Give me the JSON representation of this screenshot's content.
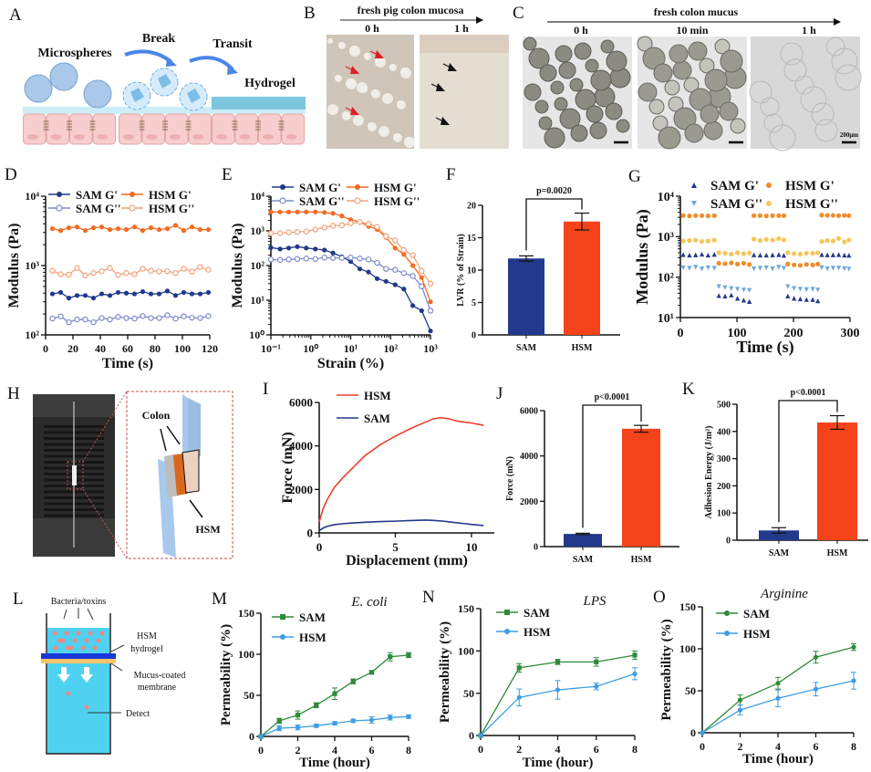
{
  "panel_letters": [
    "A",
    "B",
    "C",
    "D",
    "E",
    "F",
    "G",
    "H",
    "I",
    "J",
    "K",
    "L",
    "M",
    "N",
    "O"
  ],
  "illustrations": {
    "A": {
      "microspheres": "Microspheres",
      "break": "Break",
      "transit": "Transit",
      "hydrogel": "Hydrogel"
    },
    "B": {
      "title": "fresh pig colon mucosa",
      "times": [
        "0 h",
        "1 h"
      ]
    },
    "C": {
      "title": "fresh colon mucus",
      "times": [
        "0 h",
        "10 min",
        "1 h"
      ],
      "scale_bar": "200μm"
    },
    "H": {
      "colon": "Colon",
      "hsm": "HSM"
    },
    "L": {
      "top": "Bacteria/toxins",
      "hsm_line1": "HSM",
      "hsm_line2": "hydrogel",
      "mucus_line1": "Mucus-coated",
      "mucus_line2": "membrane",
      "detect": "Detect"
    }
  },
  "colors": {
    "sam": "#22388a",
    "hsm": "#f26b21",
    "sam_light": "#7d8cc8",
    "hsm_light": "#f2a27a",
    "bar_sam": "#233a8c",
    "bar_hsm": "#f4431b",
    "perm_sam": "#2e8b3a",
    "perm_hsm": "#3d9de6",
    "g_sam_loss": "#6fa8dc",
    "g_hsm_loss": "#f5c65a",
    "g_hsm_storage": "#f28c28"
  },
  "chart_data": [
    {
      "panel": "D",
      "type": "line",
      "title": "",
      "xlabel": "Time (s)",
      "ylabel": "Modulus (Pa)",
      "xlim": [
        0,
        120
      ],
      "ylim": [
        100,
        10000
      ],
      "yscale": "log",
      "grid": false,
      "legend": "top",
      "xticks": [
        0,
        20,
        40,
        60,
        80,
        100,
        120
      ],
      "xtick_labels": [
        "0",
        "20",
        "40",
        "60",
        "80",
        "100",
        "120"
      ],
      "yticks": [
        100,
        1000,
        10000
      ],
      "ytick_labels": [
        "10²",
        "10³",
        "10⁴"
      ],
      "x": [
        5,
        11,
        17,
        23,
        29,
        35,
        41,
        47,
        53,
        59,
        65,
        71,
        77,
        83,
        89,
        95,
        101,
        107,
        113,
        119
      ],
      "series": [
        {
          "name": "SAM G'",
          "color": "#22388a",
          "marker": "circle",
          "y": [
            390,
            410,
            340,
            370,
            370,
            340,
            390,
            370,
            410,
            400,
            390,
            420,
            390,
            390,
            430,
            370,
            410,
            390,
            390,
            410
          ]
        },
        {
          "name": "SAM G''",
          "color": "#7d8cc8",
          "marker": "circle-open",
          "y": [
            172,
            185,
            152,
            167,
            167,
            152,
            175,
            167,
            182,
            175,
            172,
            187,
            175,
            175,
            192,
            172,
            185,
            177,
            175,
            187
          ]
        },
        {
          "name": "HSM G'",
          "color": "#f26b21",
          "marker": "circle",
          "y": [
            3400,
            3200,
            3500,
            3600,
            3200,
            3500,
            3600,
            3300,
            3400,
            3300,
            3600,
            3200,
            3500,
            3300,
            3400,
            3800,
            3200,
            3600,
            3300,
            3300
          ]
        },
        {
          "name": "HSM G''",
          "color": "#f2a27a",
          "marker": "circle-open",
          "y": [
            840,
            750,
            740,
            920,
            720,
            780,
            830,
            920,
            730,
            780,
            750,
            900,
            840,
            820,
            830,
            780,
            900,
            820,
            950,
            870
          ]
        }
      ]
    },
    {
      "panel": "E",
      "type": "line",
      "title": "",
      "xlabel": "Strain (%)",
      "ylabel": "Modulus (Pa)",
      "xlim": [
        0.1,
        1000
      ],
      "ylim": [
        1,
        10000
      ],
      "xscale": "log",
      "yscale": "log",
      "grid": false,
      "legend": "top",
      "xticks": [
        0.1,
        1,
        10,
        100,
        1000
      ],
      "xtick_labels": [
        "10⁻¹",
        "10⁰",
        "10¹",
        "10²",
        "10³"
      ],
      "yticks": [
        1,
        10,
        100,
        1000,
        10000
      ],
      "ytick_labels": [
        "10⁰",
        "10¹",
        "10²",
        "10³",
        "10⁴"
      ],
      "x": [
        0.1,
        0.17,
        0.28,
        0.46,
        0.77,
        1.3,
        2.2,
        3.6,
        6,
        10,
        17,
        28,
        46,
        77,
        130,
        215,
        360,
        600,
        1000
      ],
      "series": [
        {
          "name": "SAM G'",
          "color": "#22388a",
          "marker": "circle",
          "y": [
            330,
            300,
            320,
            350,
            320,
            300,
            280,
            230,
            180,
            130,
            80,
            65,
            42,
            35,
            28,
            21,
            7,
            5,
            1.3
          ]
        },
        {
          "name": "SAM G''",
          "color": "#7d8cc8",
          "marker": "circle-open",
          "y": [
            150,
            145,
            150,
            155,
            160,
            155,
            170,
            165,
            165,
            170,
            160,
            150,
            120,
            80,
            75,
            60,
            50,
            25,
            5
          ]
        },
        {
          "name": "HSM G'",
          "color": "#f26b21",
          "marker": "circle",
          "y": [
            3500,
            3500,
            3500,
            3500,
            3500,
            3500,
            3400,
            3200,
            2700,
            2100,
            1800,
            1350,
            1100,
            650,
            320,
            210,
            100,
            45,
            9
          ]
        },
        {
          "name": "HSM G''",
          "color": "#f2a27a",
          "marker": "circle-open",
          "y": [
            850,
            860,
            900,
            930,
            960,
            1100,
            1250,
            1400,
            1450,
            1650,
            1800,
            1600,
            1300,
            700,
            530,
            280,
            200,
            70,
            30
          ]
        }
      ]
    },
    {
      "panel": "F",
      "type": "bar",
      "title": "",
      "xlabel": "",
      "ylabel": "LVR (% of Strain)",
      "ylim": [
        0,
        20
      ],
      "yticks": [
        0,
        5,
        10,
        15,
        20
      ],
      "ytick_labels": [
        "0",
        "5",
        "10",
        "15",
        "20"
      ],
      "categories": [
        "SAM",
        "HSM"
      ],
      "values": [
        11.8,
        17.5
      ],
      "errors": [
        0.4,
        1.3
      ],
      "colors": [
        "#233a8c",
        "#f4431b"
      ],
      "significance": "p=0.0020"
    },
    {
      "panel": "G",
      "type": "scatter",
      "title": "",
      "xlabel": "Time (s)",
      "ylabel": "Modulus (Pa)",
      "xlim": [
        0,
        300
      ],
      "ylim": [
        10,
        10000
      ],
      "yscale": "log",
      "grid": false,
      "legend": "top",
      "xticks": [
        0,
        100,
        200,
        300
      ],
      "xtick_labels": [
        "0",
        "100",
        "200",
        "300"
      ],
      "yticks": [
        10,
        100,
        1000,
        10000
      ],
      "ytick_labels": [
        "10¹",
        "10²",
        "10³",
        "10⁴"
      ],
      "x": [
        5,
        16,
        27,
        38,
        49,
        60,
        68,
        79,
        90,
        101,
        112,
        122,
        130,
        141,
        152,
        163,
        174,
        183,
        190,
        201,
        212,
        223,
        234,
        243,
        250,
        260,
        270,
        280,
        290,
        298
      ],
      "series": [
        {
          "name": "SAM G'",
          "color": "#22388a",
          "marker": "triangle-up",
          "y": [
            360,
            350,
            355,
            370,
            350,
            365,
            35,
            34,
            36,
            30,
            27,
            25,
            355,
            350,
            350,
            355,
            360,
            345,
            34,
            30,
            29,
            28,
            28,
            26,
            360,
            355,
            355,
            360,
            350,
            345
          ]
        },
        {
          "name": "SAM G''",
          "color": "#6fa8dc",
          "marker": "triangle-down",
          "y": [
            170,
            165,
            175,
            160,
            170,
            165,
            58,
            55,
            52,
            50,
            48,
            47,
            160,
            165,
            170,
            160,
            175,
            165,
            58,
            52,
            50,
            49,
            50,
            48,
            170,
            160,
            165,
            168,
            162,
            158
          ]
        },
        {
          "name": "HSM G'",
          "color": "#f28c28",
          "marker": "circle",
          "y": [
            3300,
            3250,
            3300,
            3300,
            3250,
            3300,
            220,
            215,
            225,
            210,
            220,
            205,
            3300,
            3300,
            3250,
            3300,
            3300,
            3300,
            210,
            200,
            195,
            205,
            200,
            210,
            3400,
            3350,
            3350,
            3300,
            3350,
            3300
          ]
        },
        {
          "name": "HSM G''",
          "color": "#f5c65a",
          "marker": "circle",
          "y": [
            780,
            800,
            820,
            760,
            780,
            820,
            400,
            390,
            370,
            400,
            380,
            395,
            870,
            800,
            850,
            820,
            900,
            830,
            400,
            380,
            370,
            390,
            385,
            400,
            760,
            800,
            780,
            900,
            740,
            830
          ]
        }
      ]
    },
    {
      "panel": "I",
      "type": "line",
      "title": "",
      "xlabel": "Displacement (mm)",
      "ylabel": "Force (mN)",
      "xlim": [
        0,
        11.5
      ],
      "ylim": [
        0,
        6000
      ],
      "grid": false,
      "legend": "top-left",
      "xticks": [
        0,
        5,
        10
      ],
      "xtick_labels": [
        "0",
        "5",
        "10"
      ],
      "yticks": [
        0,
        2000,
        4000,
        6000
      ],
      "ytick_labels": [
        "0",
        "2000",
        "4000",
        "6000"
      ],
      "x": [
        0,
        0.25,
        0.5,
        1,
        1.5,
        2,
        3,
        4,
        5,
        6,
        7,
        7.5,
        8,
        8.5,
        9,
        9.5,
        10,
        10.8
      ],
      "series": [
        {
          "name": "HSM",
          "color": "#e8412a",
          "marker": "none",
          "y": [
            500,
            1100,
            1500,
            2100,
            2500,
            2850,
            3550,
            4050,
            4450,
            4800,
            5100,
            5250,
            5300,
            5250,
            5150,
            5100,
            5050,
            4950
          ]
        },
        {
          "name": "SAM",
          "color": "#22388a",
          "marker": "none",
          "y": [
            100,
            220,
            300,
            380,
            420,
            450,
            490,
            520,
            540,
            570,
            590,
            575,
            550,
            510,
            470,
            430,
            390,
            340
          ]
        }
      ]
    },
    {
      "panel": "J",
      "type": "bar",
      "title": "",
      "xlabel": "",
      "ylabel": "Force (mN)",
      "ylim": [
        0,
        6000
      ],
      "yticks": [
        0,
        2000,
        4000,
        6000
      ],
      "ytick_labels": [
        "0",
        "2000",
        "4000",
        "6000"
      ],
      "categories": [
        "SAM",
        "HSM"
      ],
      "values": [
        560,
        5200
      ],
      "errors": [
        30,
        150
      ],
      "colors": [
        "#233a8c",
        "#f4431b"
      ],
      "significance": "p<0.0001"
    },
    {
      "panel": "K",
      "type": "bar",
      "title": "",
      "xlabel": "",
      "ylabel": "Adhesion Energy (J/m²)",
      "ylim": [
        0,
        500
      ],
      "yticks": [
        0,
        100,
        200,
        300,
        400,
        500
      ],
      "ytick_labels": [
        "0",
        "100",
        "200",
        "300",
        "400",
        "500"
      ],
      "categories": [
        "SAM",
        "HSM"
      ],
      "values": [
        36,
        433
      ],
      "errors": [
        10,
        25
      ],
      "colors": [
        "#233a8c",
        "#f4431b"
      ],
      "significance": "p<0.0001"
    },
    {
      "panel": "M",
      "type": "line",
      "title": "E. coli",
      "xlabel": "Time (hour)",
      "ylabel": "Permeability (%)",
      "xlim": [
        0,
        8
      ],
      "ylim": [
        0,
        150
      ],
      "grid": false,
      "legend": "top-left",
      "xticks": [
        0,
        2,
        4,
        6,
        8
      ],
      "xtick_labels": [
        "0",
        "2",
        "4",
        "6",
        "8"
      ],
      "yticks": [
        0,
        50,
        100,
        150
      ],
      "ytick_labels": [
        "0",
        "50",
        "100",
        "150"
      ],
      "x": [
        0,
        1,
        2,
        3,
        4,
        5,
        6,
        7,
        8
      ],
      "series": [
        {
          "name": "SAM",
          "color": "#2e8b3a",
          "marker": "square",
          "y": [
            0,
            19,
            26,
            38,
            52,
            67,
            78,
            97,
            99
          ],
          "err": [
            0,
            3,
            5,
            3,
            7,
            3,
            2,
            5,
            3
          ]
        },
        {
          "name": "HSM",
          "color": "#3d9de6",
          "marker": "circle",
          "y": [
            0,
            10,
            11,
            13,
            16,
            19,
            20,
            23,
            24
          ],
          "err": [
            0,
            3,
            3,
            2,
            2,
            2,
            4,
            3,
            2
          ]
        }
      ]
    },
    {
      "panel": "N",
      "type": "line",
      "title": "LPS",
      "xlabel": "Time (hour)",
      "ylabel": "Permeability (%)",
      "xlim": [
        0,
        8
      ],
      "ylim": [
        0,
        150
      ],
      "grid": false,
      "legend": "top-left",
      "xticks": [
        0,
        2,
        4,
        6,
        8
      ],
      "xtick_labels": [
        "0",
        "2",
        "4",
        "6",
        "8"
      ],
      "yticks": [
        0,
        50,
        100,
        150
      ],
      "ytick_labels": [
        "0",
        "50",
        "100",
        "150"
      ],
      "x": [
        0,
        2,
        4,
        6,
        8
      ],
      "series": [
        {
          "name": "SAM",
          "color": "#2e8b3a",
          "marker": "square",
          "y": [
            0,
            80,
            87,
            87,
            95
          ],
          "err": [
            0,
            5,
            3,
            5,
            5
          ]
        },
        {
          "name": "HSM",
          "color": "#3d9de6",
          "marker": "circle",
          "y": [
            0,
            45,
            54,
            58,
            73
          ],
          "err": [
            0,
            10,
            11,
            4,
            7
          ]
        }
      ]
    },
    {
      "panel": "O",
      "type": "line",
      "title": "Arginine",
      "xlabel": "Time (hour)",
      "ylabel": "Permeability (%)",
      "xlim": [
        0,
        8
      ],
      "ylim": [
        0,
        150
      ],
      "grid": false,
      "legend": "top-left",
      "xticks": [
        0,
        2,
        4,
        6,
        8
      ],
      "xtick_labels": [
        "0",
        "2",
        "4",
        "6",
        "8"
      ],
      "yticks": [
        0,
        50,
        100,
        150
      ],
      "ytick_labels": [
        "0",
        "50",
        "100",
        "150"
      ],
      "x": [
        0,
        2,
        4,
        6,
        8
      ],
      "series": [
        {
          "name": "SAM",
          "color": "#2e8b3a",
          "marker": "circle",
          "y": [
            0,
            39,
            59,
            90,
            102
          ],
          "err": [
            0,
            6,
            7,
            7,
            4
          ]
        },
        {
          "name": "HSM",
          "color": "#3d9de6",
          "marker": "circle",
          "y": [
            0,
            27,
            41,
            52,
            62
          ],
          "err": [
            0,
            6,
            10,
            8,
            10
          ]
        }
      ]
    }
  ]
}
